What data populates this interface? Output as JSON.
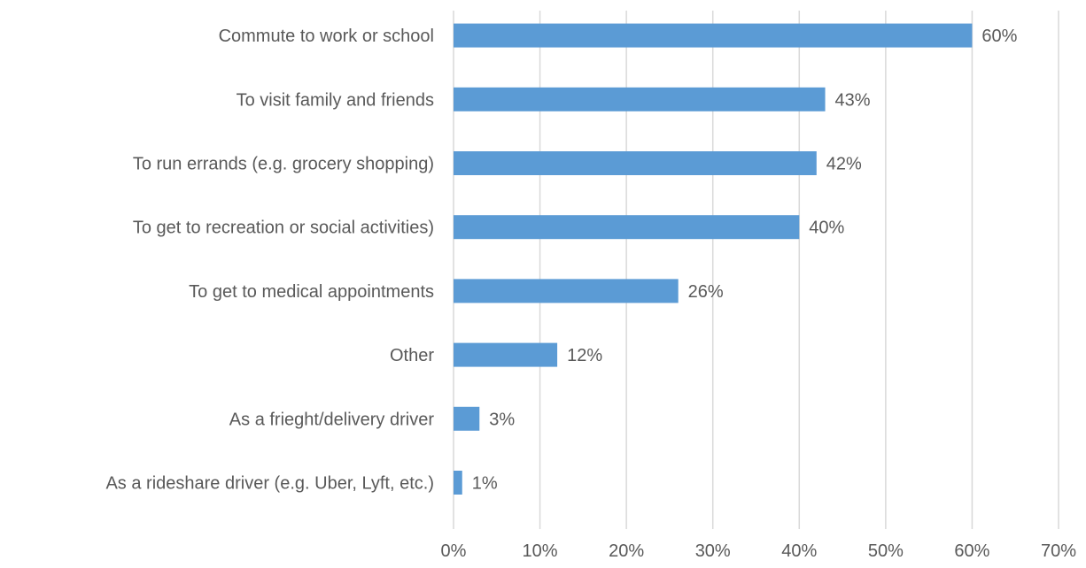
{
  "chart_data": {
    "type": "bar",
    "orientation": "horizontal",
    "title": "",
    "xlabel": "",
    "ylabel": "",
    "categories": [
      "Commute to work or school",
      "To visit family and friends",
      "To run errands (e.g. grocery shopping)",
      "To get to recreation or social activities)",
      "To get to medical appointments",
      "Other",
      "As a frieght/delivery driver",
      "As a rideshare driver (e.g. Uber, Lyft, etc.)"
    ],
    "values": [
      60,
      43,
      42,
      40,
      26,
      12,
      3,
      1
    ],
    "data_labels": [
      "60%",
      "43%",
      "42%",
      "40%",
      "26%",
      "12%",
      "3%",
      "1%"
    ],
    "xlim": [
      0,
      70
    ],
    "x_ticks": [
      0,
      10,
      20,
      30,
      40,
      50,
      60,
      70
    ],
    "x_tick_labels": [
      "0%",
      "10%",
      "20%",
      "30%",
      "40%",
      "50%",
      "60%",
      "70%"
    ],
    "grid": "vertical",
    "legend": "none",
    "bar_color": "#5b9bd5",
    "grid_color": "#d9d9d9",
    "text_color": "#595959"
  }
}
